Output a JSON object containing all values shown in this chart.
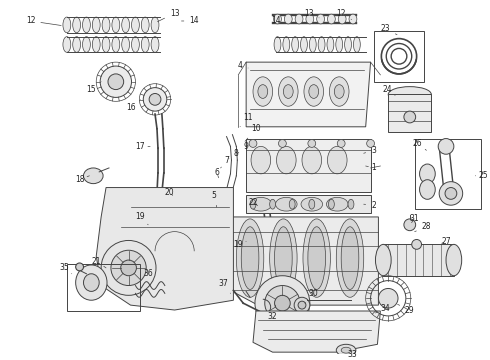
{
  "bg_color": "#ffffff",
  "line_color": "#444444",
  "fig_width": 4.9,
  "fig_height": 3.6,
  "dpi": 100,
  "annotation_fontsize": 5.5,
  "line_width": 0.7
}
